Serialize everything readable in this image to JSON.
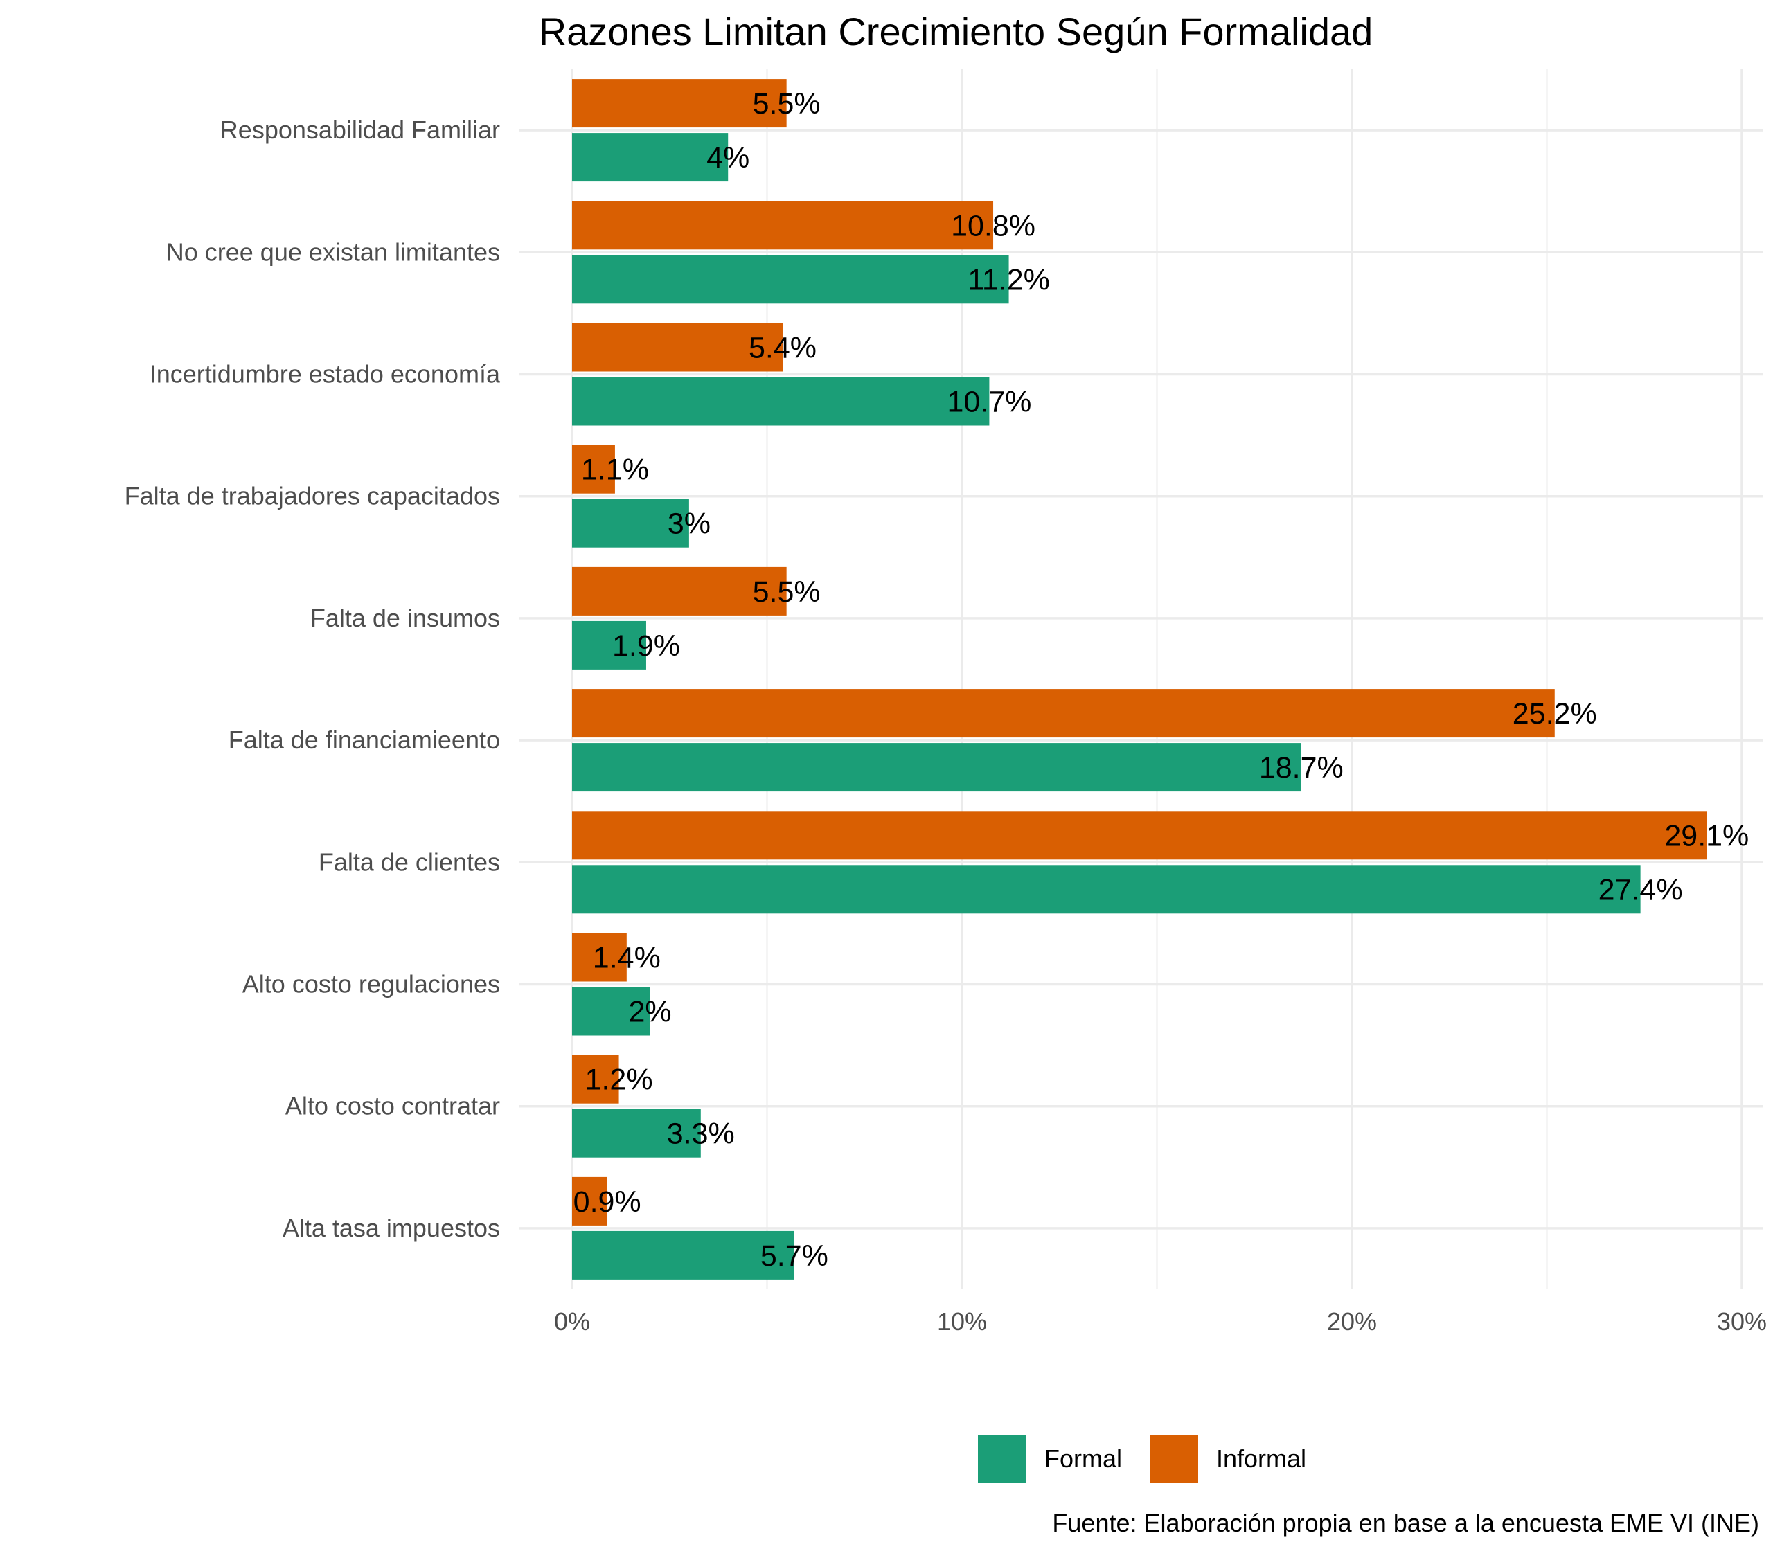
{
  "chart_data": {
    "type": "bar",
    "orientation": "horizontal",
    "title": "Razones Limitan Crecimiento Según Formalidad",
    "xlabel": "",
    "ylabel": "",
    "caption": "Fuente: Elaboración propia en base a la encuesta EME VI (INE)",
    "xlim": [
      0,
      30
    ],
    "x_ticks": [
      0,
      10,
      20,
      30
    ],
    "x_tick_labels": [
      "0%",
      "10%",
      "20%",
      "30%"
    ],
    "grid": true,
    "legend_position": "bottom",
    "categories": [
      "Responsabilidad Familiar",
      "No cree que existan limitantes",
      "Incertidumbre estado economía",
      "Falta de trabajadores capacitados",
      "Falta de insumos",
      "Falta de financiamieento",
      "Falta de clientes",
      "Alto costo regulaciones",
      "Alto costo contratar",
      "Alta tasa impuestos"
    ],
    "series": [
      {
        "name": "Formal",
        "color": "#1b9e77",
        "values": [
          4,
          11.2,
          10.7,
          3,
          1.9,
          18.7,
          27.4,
          2,
          3.3,
          5.7
        ],
        "labels": [
          "4%",
          "11.2%",
          "10.7%",
          "3%",
          "1.9%",
          "18.7%",
          "27.4%",
          "2%",
          "3.3%",
          "5.7%"
        ]
      },
      {
        "name": "Informal",
        "color": "#d95f02",
        "values": [
          5.5,
          10.8,
          5.4,
          1.1,
          5.5,
          25.2,
          29.1,
          1.4,
          1.2,
          0.9
        ],
        "labels": [
          "5.5%",
          "10.8%",
          "5.4%",
          "1.1%",
          "5.5%",
          "25.2%",
          "29.1%",
          "1.4%",
          "1.2%",
          "0.9%"
        ]
      }
    ]
  }
}
